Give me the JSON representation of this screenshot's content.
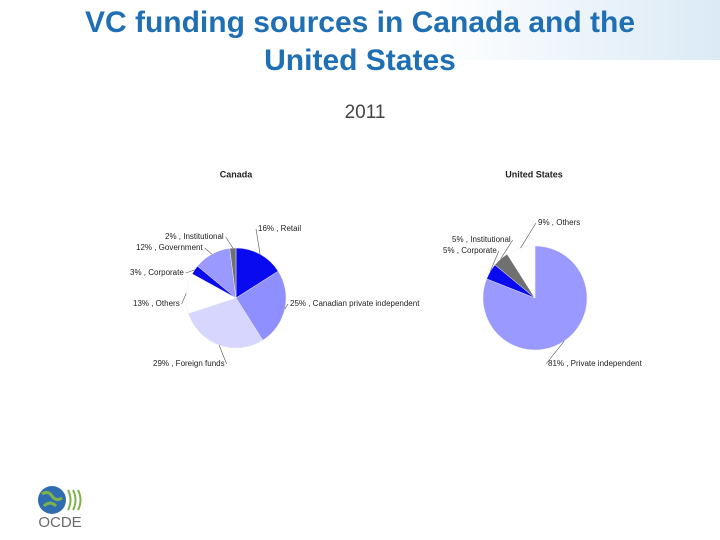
{
  "title": "VC funding sources in Canada and the United States",
  "subtitle": "2011",
  "logo": "OCDE",
  "chart_data": [
    {
      "type": "pie",
      "title": "Canada",
      "values": [
        16,
        25,
        29,
        13,
        3,
        12,
        2
      ],
      "value_labels": [
        "16% , Retail",
        "25% , Canadian private independent",
        "29% , Foreign funds",
        "13% , Others",
        "3% , Corporate",
        "12% , Government",
        "2% , Institutional"
      ],
      "colors": [
        "#0a0af0",
        "#8f8fff",
        "#d6d6ff",
        "#ffffff",
        "#0a0af0",
        "#9999ff",
        "#707070"
      ]
    },
    {
      "type": "pie",
      "title": "United States",
      "values": [
        81,
        5,
        5,
        9
      ],
      "value_labels": [
        "81% , Private independent",
        "5% , Corporate",
        "5% , Institutional",
        "9% , Others"
      ],
      "colors": [
        "#9999ff",
        "#0a0af0",
        "#707070",
        "#ffffff"
      ]
    }
  ]
}
